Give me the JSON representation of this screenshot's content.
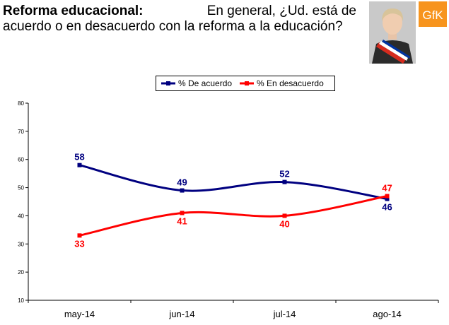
{
  "header": {
    "title": "Reforma educacional:",
    "question_part1": "En general, ¿Ud. está de",
    "question_part2": "acuerdo o en desacuerdo con la reforma a la educación?"
  },
  "logo": {
    "text": "GfK",
    "color": "#f7941d"
  },
  "chart_data": {
    "type": "line",
    "categories": [
      "may-14",
      "jun-14",
      "jul-14",
      "ago-14"
    ],
    "series": [
      {
        "name": "% De acuerdo",
        "values": [
          58,
          49,
          52,
          46
        ],
        "color": "#000080"
      },
      {
        "name": "% En desacuerdo",
        "values": [
          33,
          41,
          40,
          47
        ],
        "color": "#ff0000"
      }
    ],
    "ylim": [
      10,
      80
    ],
    "yticks": [
      10,
      20,
      30,
      40,
      50,
      60,
      70,
      80
    ],
    "grid": false,
    "legend_position": "top-center",
    "title": "",
    "xlabel": "",
    "ylabel": ""
  }
}
